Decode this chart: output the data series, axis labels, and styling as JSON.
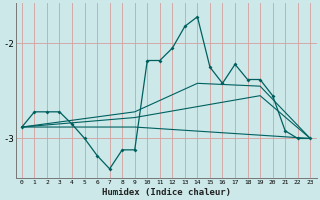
{
  "xlabel": "Humidex (Indice chaleur)",
  "bg_color": "#cce8e8",
  "grid_color": "#d4a0a0",
  "line_color": "#006060",
  "xlim": [
    -0.5,
    23.5
  ],
  "ylim": [
    -3.42,
    -1.58
  ],
  "yticks": [
    -3,
    -2
  ],
  "xticks": [
    0,
    1,
    2,
    3,
    4,
    5,
    6,
    7,
    8,
    9,
    10,
    11,
    12,
    13,
    14,
    15,
    16,
    17,
    18,
    19,
    20,
    21,
    22,
    23
  ],
  "main_line": {
    "x": [
      0,
      1,
      2,
      3,
      4,
      5,
      6,
      7,
      8,
      9,
      10,
      11,
      12,
      13,
      14,
      15,
      16,
      17,
      18,
      19,
      20,
      21,
      22,
      23
    ],
    "y": [
      -2.88,
      -2.72,
      -2.72,
      -2.72,
      -2.85,
      -3.0,
      -3.18,
      -3.32,
      -3.12,
      -3.12,
      -2.18,
      -2.18,
      -2.05,
      -1.82,
      -1.72,
      -2.25,
      -2.42,
      -2.22,
      -2.38,
      -2.38,
      -2.55,
      -2.92,
      -3.0,
      -3.0
    ]
  },
  "regression_lines": [
    {
      "x": [
        0,
        9,
        23
      ],
      "y": [
        -2.88,
        -2.88,
        -3.0
      ]
    },
    {
      "x": [
        0,
        9,
        19,
        23
      ],
      "y": [
        -2.88,
        -2.78,
        -2.55,
        -3.0
      ]
    },
    {
      "x": [
        0,
        9,
        14,
        19,
        23
      ],
      "y": [
        -2.88,
        -2.72,
        -2.42,
        -2.45,
        -3.0
      ]
    }
  ]
}
